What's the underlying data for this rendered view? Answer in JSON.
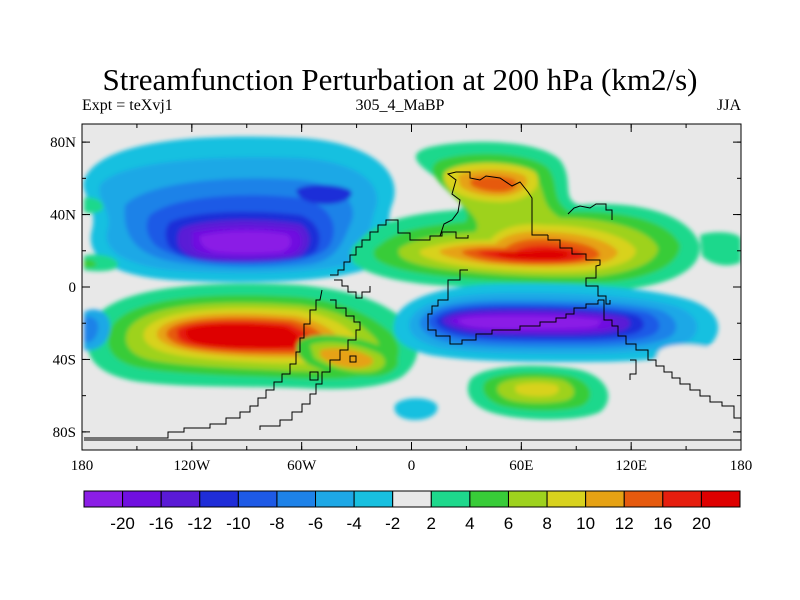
{
  "header": {
    "title": "Streamfunction Perturbation at 200 hPa (km2/s)",
    "left_label": "Expt = teXvj1",
    "center_label": "305_4_MaBP",
    "right_label": "JJA"
  },
  "map": {
    "lon_ticks": [
      "180",
      "120W",
      "60W",
      "0",
      "60E",
      "120E",
      "180"
    ],
    "lat_ticks": [
      "80N",
      "40N",
      "0",
      "40S",
      "80S"
    ],
    "background_color": "#e8e8e8",
    "coastline_color": "#000000"
  },
  "colorbar": {
    "labels": [
      "-20",
      "-16",
      "-12",
      "-10",
      "-8",
      "-6",
      "-4",
      "-2",
      "2",
      "4",
      "6",
      "8",
      "10",
      "12",
      "16",
      "20"
    ],
    "colors": [
      "#8b1ee6",
      "#7010e0",
      "#5a1ad6",
      "#1f2dd8",
      "#1e5ae6",
      "#1e82e8",
      "#1ea8e6",
      "#18c0e0",
      "#e8e8e8",
      "#1ed88c",
      "#38cc38",
      "#9ed21e",
      "#d8d21e",
      "#e6a214",
      "#e65a0e",
      "#e61e0e",
      "#de0000"
    ]
  }
}
